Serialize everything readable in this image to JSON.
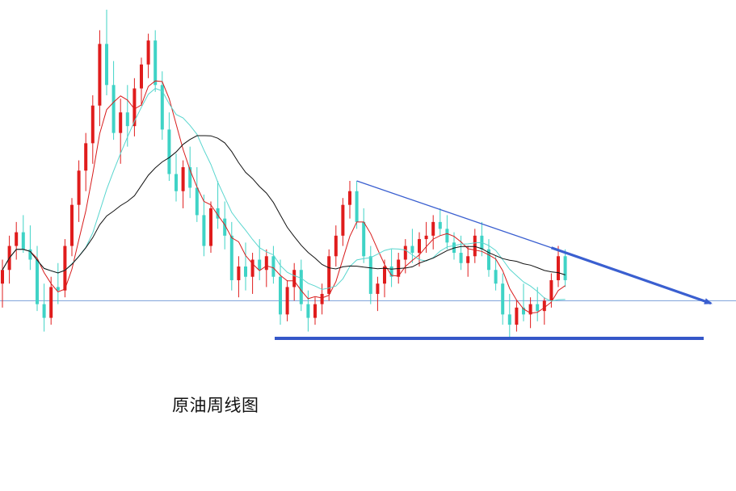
{
  "caption": "原油周线图",
  "colors": {
    "up": "#e01c1c",
    "down": "#3fd3c6",
    "ma_short": "#d81c1c",
    "ma_mid": "#5ad6cf",
    "ma_long": "#111111",
    "reference_line": "#7a9fd8",
    "trend_line": "#3a5fd0",
    "support_line": "#3557c8"
  },
  "chart_data": {
    "type": "candlestick",
    "title": "",
    "xlabel": "",
    "ylabel": "",
    "ylim": [
      0,
      100
    ],
    "grid": false,
    "legend": "none",
    "candles": [
      {
        "o": 20,
        "h": 27,
        "l": 13,
        "c": 24
      },
      {
        "o": 24,
        "h": 34,
        "l": 20,
        "c": 31
      },
      {
        "o": 31,
        "h": 38,
        "l": 27,
        "c": 35
      },
      {
        "o": 35,
        "h": 40,
        "l": 29,
        "c": 30
      },
      {
        "o": 30,
        "h": 37,
        "l": 24,
        "c": 27
      },
      {
        "o": 27,
        "h": 31,
        "l": 12,
        "c": 14
      },
      {
        "o": 14,
        "h": 20,
        "l": 6,
        "c": 10
      },
      {
        "o": 10,
        "h": 22,
        "l": 8,
        "c": 19
      },
      {
        "o": 19,
        "h": 26,
        "l": 14,
        "c": 18
      },
      {
        "o": 18,
        "h": 33,
        "l": 16,
        "c": 31
      },
      {
        "o": 31,
        "h": 45,
        "l": 28,
        "c": 43
      },
      {
        "o": 43,
        "h": 56,
        "l": 38,
        "c": 53
      },
      {
        "o": 53,
        "h": 64,
        "l": 47,
        "c": 61
      },
      {
        "o": 61,
        "h": 75,
        "l": 55,
        "c": 72
      },
      {
        "o": 72,
        "h": 94,
        "l": 66,
        "c": 90
      },
      {
        "o": 90,
        "h": 100,
        "l": 75,
        "c": 78
      },
      {
        "o": 78,
        "h": 85,
        "l": 62,
        "c": 64
      },
      {
        "o": 64,
        "h": 74,
        "l": 55,
        "c": 70
      },
      {
        "o": 70,
        "h": 78,
        "l": 60,
        "c": 66
      },
      {
        "o": 66,
        "h": 80,
        "l": 63,
        "c": 77
      },
      {
        "o": 77,
        "h": 86,
        "l": 72,
        "c": 84
      },
      {
        "o": 84,
        "h": 93,
        "l": 80,
        "c": 91
      },
      {
        "o": 91,
        "h": 94,
        "l": 76,
        "c": 78
      },
      {
        "o": 78,
        "h": 82,
        "l": 62,
        "c": 65
      },
      {
        "o": 65,
        "h": 70,
        "l": 50,
        "c": 52
      },
      {
        "o": 52,
        "h": 58,
        "l": 44,
        "c": 47
      },
      {
        "o": 47,
        "h": 56,
        "l": 42,
        "c": 54
      },
      {
        "o": 54,
        "h": 60,
        "l": 45,
        "c": 48
      },
      {
        "o": 48,
        "h": 54,
        "l": 38,
        "c": 40
      },
      {
        "o": 40,
        "h": 46,
        "l": 28,
        "c": 31
      },
      {
        "o": 31,
        "h": 44,
        "l": 29,
        "c": 42
      },
      {
        "o": 42,
        "h": 50,
        "l": 36,
        "c": 39
      },
      {
        "o": 39,
        "h": 44,
        "l": 30,
        "c": 34
      },
      {
        "o": 34,
        "h": 38,
        "l": 18,
        "c": 21
      },
      {
        "o": 21,
        "h": 28,
        "l": 16,
        "c": 25
      },
      {
        "o": 25,
        "h": 32,
        "l": 18,
        "c": 22
      },
      {
        "o": 22,
        "h": 29,
        "l": 17,
        "c": 27
      },
      {
        "o": 27,
        "h": 33,
        "l": 21,
        "c": 24
      },
      {
        "o": 24,
        "h": 30,
        "l": 19,
        "c": 28
      },
      {
        "o": 28,
        "h": 31,
        "l": 20,
        "c": 22
      },
      {
        "o": 22,
        "h": 27,
        "l": 8,
        "c": 11
      },
      {
        "o": 11,
        "h": 21,
        "l": 9,
        "c": 19
      },
      {
        "o": 19,
        "h": 26,
        "l": 15,
        "c": 24
      },
      {
        "o": 24,
        "h": 27,
        "l": 12,
        "c": 14
      },
      {
        "o": 14,
        "h": 18,
        "l": 6,
        "c": 10
      },
      {
        "o": 10,
        "h": 16,
        "l": 8,
        "c": 14
      },
      {
        "o": 14,
        "h": 20,
        "l": 11,
        "c": 17
      },
      {
        "o": 17,
        "h": 30,
        "l": 15,
        "c": 28
      },
      {
        "o": 28,
        "h": 37,
        "l": 25,
        "c": 34
      },
      {
        "o": 34,
        "h": 45,
        "l": 31,
        "c": 43
      },
      {
        "o": 43,
        "h": 50,
        "l": 39,
        "c": 47
      },
      {
        "o": 47,
        "h": 50,
        "l": 36,
        "c": 38
      },
      {
        "o": 38,
        "h": 42,
        "l": 26,
        "c": 28
      },
      {
        "o": 28,
        "h": 31,
        "l": 14,
        "c": 17
      },
      {
        "o": 17,
        "h": 22,
        "l": 12,
        "c": 20
      },
      {
        "o": 20,
        "h": 27,
        "l": 16,
        "c": 25
      },
      {
        "o": 25,
        "h": 30,
        "l": 19,
        "c": 22
      },
      {
        "o": 22,
        "h": 29,
        "l": 20,
        "c": 27
      },
      {
        "o": 27,
        "h": 33,
        "l": 23,
        "c": 31
      },
      {
        "o": 31,
        "h": 36,
        "l": 26,
        "c": 29
      },
      {
        "o": 29,
        "h": 35,
        "l": 25,
        "c": 33
      },
      {
        "o": 33,
        "h": 38,
        "l": 29,
        "c": 34
      },
      {
        "o": 34,
        "h": 40,
        "l": 30,
        "c": 38
      },
      {
        "o": 38,
        "h": 42,
        "l": 34,
        "c": 36
      },
      {
        "o": 36,
        "h": 40,
        "l": 30,
        "c": 32
      },
      {
        "o": 32,
        "h": 35,
        "l": 27,
        "c": 29
      },
      {
        "o": 29,
        "h": 34,
        "l": 24,
        "c": 26
      },
      {
        "o": 26,
        "h": 31,
        "l": 22,
        "c": 28
      },
      {
        "o": 28,
        "h": 36,
        "l": 26,
        "c": 34
      },
      {
        "o": 34,
        "h": 38,
        "l": 28,
        "c": 30
      },
      {
        "o": 30,
        "h": 33,
        "l": 22,
        "c": 24
      },
      {
        "o": 24,
        "h": 28,
        "l": 18,
        "c": 20
      },
      {
        "o": 20,
        "h": 23,
        "l": 8,
        "c": 11
      },
      {
        "o": 11,
        "h": 17,
        "l": 4,
        "c": 8
      },
      {
        "o": 8,
        "h": 15,
        "l": 6,
        "c": 13
      },
      {
        "o": 13,
        "h": 20,
        "l": 9,
        "c": 11
      },
      {
        "o": 11,
        "h": 16,
        "l": 7,
        "c": 14
      },
      {
        "o": 14,
        "h": 19,
        "l": 9,
        "c": 12
      },
      {
        "o": 12,
        "h": 16,
        "l": 8,
        "c": 15
      },
      {
        "o": 15,
        "h": 23,
        "l": 13,
        "c": 21
      },
      {
        "o": 21,
        "h": 31,
        "l": 19,
        "c": 28
      },
      {
        "o": 28,
        "h": 30,
        "l": 19,
        "c": 21
      }
    ],
    "moving_averages": [
      {
        "name": "",
        "period": 5,
        "color": "#d81c1c"
      },
      {
        "name": "",
        "period": 10,
        "color": "#5ad6cf"
      },
      {
        "name": "",
        "period": 20,
        "color": "#111111"
      }
    ],
    "reference_level": 15,
    "support_level": 4,
    "trend_line": {
      "start_candle": 51,
      "start_value": 50,
      "end_value": 14,
      "arrow": true
    }
  }
}
